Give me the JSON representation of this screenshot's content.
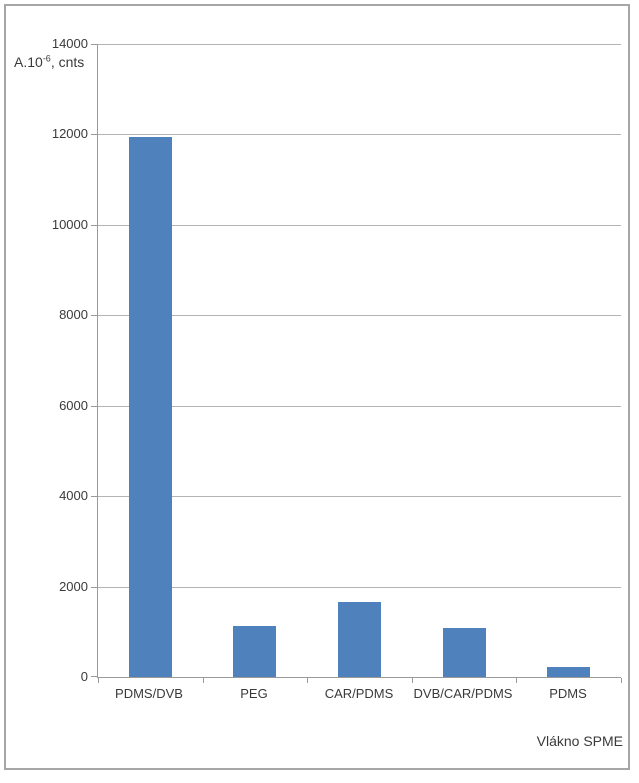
{
  "chart_data": {
    "type": "bar",
    "categories": [
      "PDMS/DVB",
      "PEG",
      "CAR/PDMS",
      "DVB/CAR/PDMS",
      "PDMS"
    ],
    "values": [
      11950,
      1120,
      1650,
      1090,
      230
    ],
    "title": "",
    "xlabel": "Vlákno SPME",
    "ylabel": {
      "prefix": "A.10",
      "sup": "-6",
      "suffix": ", cnts"
    },
    "ylim": [
      0,
      14000
    ],
    "ytick_step": 2000,
    "yticks": [
      0,
      2000,
      4000,
      6000,
      8000,
      10000,
      12000,
      14000
    ],
    "grid": true,
    "legend": "none",
    "colors": {
      "bar": "#4f81bd",
      "gridline": "#b3b3b3",
      "axis": "#9a9a9a",
      "text": "#3a3a3a",
      "frame_border": "#a6a6a6",
      "background": "#ffffff"
    }
  }
}
